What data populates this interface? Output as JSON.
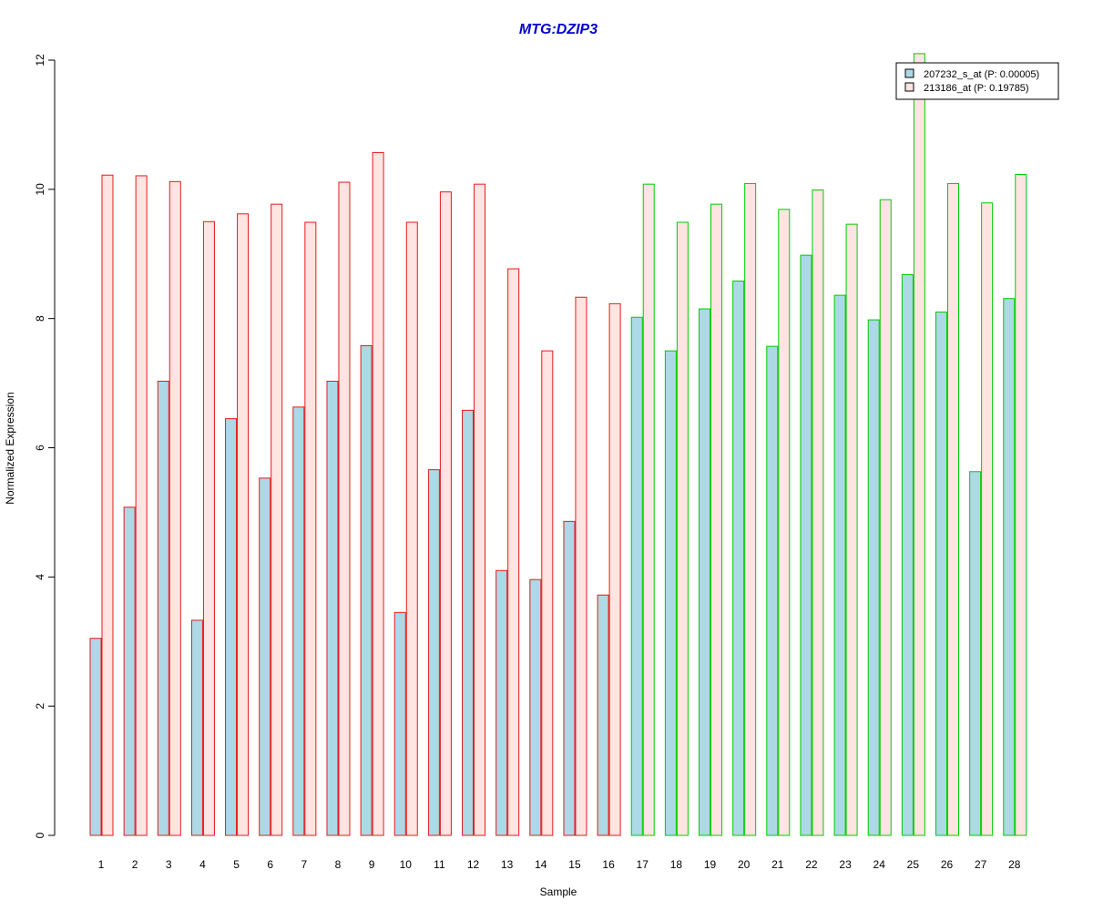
{
  "chart_data": {
    "type": "bar",
    "title": "MTG:DZIP3",
    "xlabel": "Sample",
    "ylabel": "Normalized Expression",
    "ylim": [
      0,
      12
    ],
    "yticks": [
      0,
      2,
      4,
      6,
      8,
      10,
      12
    ],
    "grid": false,
    "legend_position": "top-right",
    "categories": [
      "1",
      "2",
      "3",
      "4",
      "5",
      "6",
      "7",
      "8",
      "9",
      "10",
      "11",
      "12",
      "13",
      "14",
      "15",
      "16",
      "17",
      "18",
      "19",
      "20",
      "21",
      "22",
      "23",
      "24",
      "25",
      "26",
      "27",
      "28"
    ],
    "groups": [
      {
        "samples_from": 1,
        "samples_to": 16,
        "border_color": "#e41a1c"
      },
      {
        "samples_from": 17,
        "samples_to": 28,
        "border_color": "#00cc00"
      }
    ],
    "series": [
      {
        "name": "207232_s_at (P: 0.00005)",
        "fill_color": "#add8e6",
        "values": [
          3.05,
          5.08,
          7.03,
          3.33,
          6.45,
          5.53,
          6.63,
          7.03,
          7.58,
          3.45,
          5.66,
          6.58,
          4.1,
          3.96,
          4.86,
          3.72,
          8.02,
          7.5,
          8.15,
          8.58,
          7.57,
          8.98,
          8.36,
          7.98,
          8.68,
          8.1,
          5.63,
          8.31
        ]
      },
      {
        "name": "213186_at (P: 0.19785)",
        "fill_color": "#ffe4e1",
        "values": [
          10.22,
          10.21,
          10.12,
          9.5,
          9.62,
          9.77,
          9.49,
          10.11,
          10.57,
          9.49,
          9.96,
          10.08,
          8.77,
          7.5,
          8.33,
          8.23,
          10.08,
          9.49,
          9.77,
          10.09,
          9.69,
          9.99,
          9.46,
          9.84,
          12.1,
          10.09,
          9.79,
          10.23
        ]
      }
    ],
    "colors": {
      "title": "#0000cc",
      "axis": "#000000"
    }
  }
}
